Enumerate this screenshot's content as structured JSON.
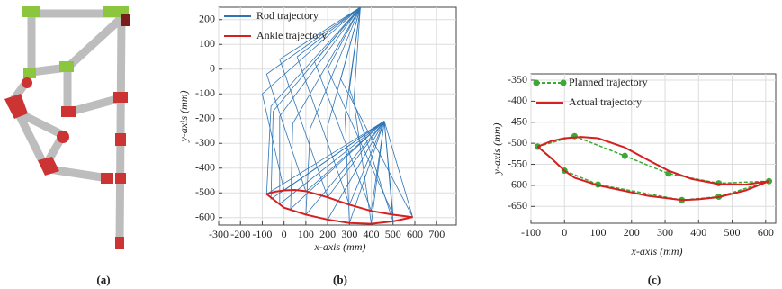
{
  "panel_labels": [
    "(a)",
    "(b)",
    "(c)"
  ],
  "chart_data": [
    {
      "type": "line",
      "x_label": "x-axis (mm)",
      "y_label": "y-axis (mm)",
      "xlim": [
        -300,
        790
      ],
      "ylim": [
        -630,
        250
      ],
      "xticks": [
        -300,
        -200,
        -100,
        0,
        100,
        200,
        300,
        400,
        500,
        600,
        700
      ],
      "yticks": [
        -600,
        -500,
        -400,
        -300,
        -200,
        -100,
        0,
        100,
        200
      ],
      "grid": true,
      "legend": "upper-left",
      "series": [
        {
          "name": "Rod trajectory",
          "color": "#2e75b6",
          "rods": [
            {
              "x": [
                350,
                -60,
                -80,
                460
              ],
              "y": [
                250,
                -150,
                -505,
                -210
              ]
            },
            {
              "x": [
                350,
                -100,
                0,
                460
              ],
              "y": [
                250,
                -100,
                -490,
                -210
              ]
            },
            {
              "x": [
                350,
                -80,
                100,
                460
              ],
              "y": [
                250,
                -20,
                -495,
                -210
              ]
            },
            {
              "x": [
                350,
                -20,
                200,
                460
              ],
              "y": [
                250,
                40,
                -518,
                -210
              ]
            },
            {
              "x": [
                350,
                60,
                300,
                460
              ],
              "y": [
                250,
                50,
                -548,
                -210
              ]
            },
            {
              "x": [
                350,
                140,
                400,
                460
              ],
              "y": [
                250,
                30,
                -573,
                -210
              ]
            },
            {
              "x": [
                350,
                200,
                500,
                460
              ],
              "y": [
                250,
                0,
                -588,
                -210
              ]
            },
            {
              "x": [
                350,
                260,
                590,
                460
              ],
              "y": [
                250,
                -40,
                -598,
                -210
              ]
            },
            {
              "x": [
                350,
                300,
                500,
                460
              ],
              "y": [
                250,
                -80,
                -615,
                -210
              ]
            },
            {
              "x": [
                350,
                320,
                400,
                460
              ],
              "y": [
                250,
                -130,
                -625,
                -210
              ]
            },
            {
              "x": [
                350,
                280,
                300,
                460
              ],
              "y": [
                250,
                -190,
                -622,
                -210
              ]
            },
            {
              "x": [
                350,
                200,
                200,
                460
              ],
              "y": [
                250,
                -230,
                -608,
                -210
              ]
            },
            {
              "x": [
                350,
                120,
                100,
                460
              ],
              "y": [
                250,
                -240,
                -588,
                -210
              ]
            },
            {
              "x": [
                350,
                40,
                30,
                460
              ],
              "y": [
                250,
                -220,
                -565,
                -210
              ]
            },
            {
              "x": [
                350,
                -20,
                -20,
                460
              ],
              "y": [
                250,
                -190,
                -545,
                -210
              ]
            },
            {
              "x": [
                350,
                -50,
                -60,
                460
              ],
              "y": [
                250,
                -170,
                -525,
                -210
              ]
            }
          ]
        },
        {
          "name": "Ankle trajectory",
          "color": "#d62020",
          "x": [
            -80,
            -40,
            0,
            50,
            100,
            200,
            300,
            400,
            500,
            590,
            500,
            400,
            300,
            200,
            100,
            0,
            -80
          ],
          "y": [
            -505,
            -495,
            -490,
            -488,
            -493,
            -518,
            -548,
            -573,
            -588,
            -598,
            -615,
            -625,
            -622,
            -608,
            -588,
            -560,
            -505
          ]
        }
      ]
    },
    {
      "type": "line",
      "x_label": "x-axis (mm)",
      "y_label": "y-axis (mm)",
      "xlim": [
        -100,
        630
      ],
      "ylim": [
        -690,
        -335
      ],
      "xticks": [
        -100,
        0,
        100,
        200,
        300,
        400,
        500,
        600
      ],
      "yticks": [
        -650,
        -600,
        -550,
        -500,
        -450,
        -400,
        -350
      ],
      "grid": true,
      "legend": "upper-left",
      "series": [
        {
          "name": "Planned trajectory",
          "color": "#3aaa35",
          "dashed": true,
          "markers": true,
          "x": [
            -80,
            30,
            180,
            310,
            460,
            610,
            460,
            350,
            100,
            0,
            -80
          ],
          "y": [
            -508,
            -483,
            -530,
            -572,
            -595,
            -590,
            -627,
            -635,
            -598,
            -565,
            -508
          ]
        },
        {
          "name": "Actual trajectory",
          "color": "#d62020",
          "x": [
            -80,
            -40,
            0,
            50,
            100,
            180,
            250,
            310,
            380,
            460,
            540,
            610,
            540,
            460,
            400,
            350,
            250,
            100,
            30,
            0,
            -40,
            -80
          ],
          "y": [
            -508,
            -495,
            -488,
            -485,
            -488,
            -510,
            -540,
            -565,
            -585,
            -597,
            -598,
            -590,
            -612,
            -628,
            -633,
            -635,
            -625,
            -600,
            -582,
            -565,
            -535,
            -508
          ]
        }
      ]
    }
  ]
}
